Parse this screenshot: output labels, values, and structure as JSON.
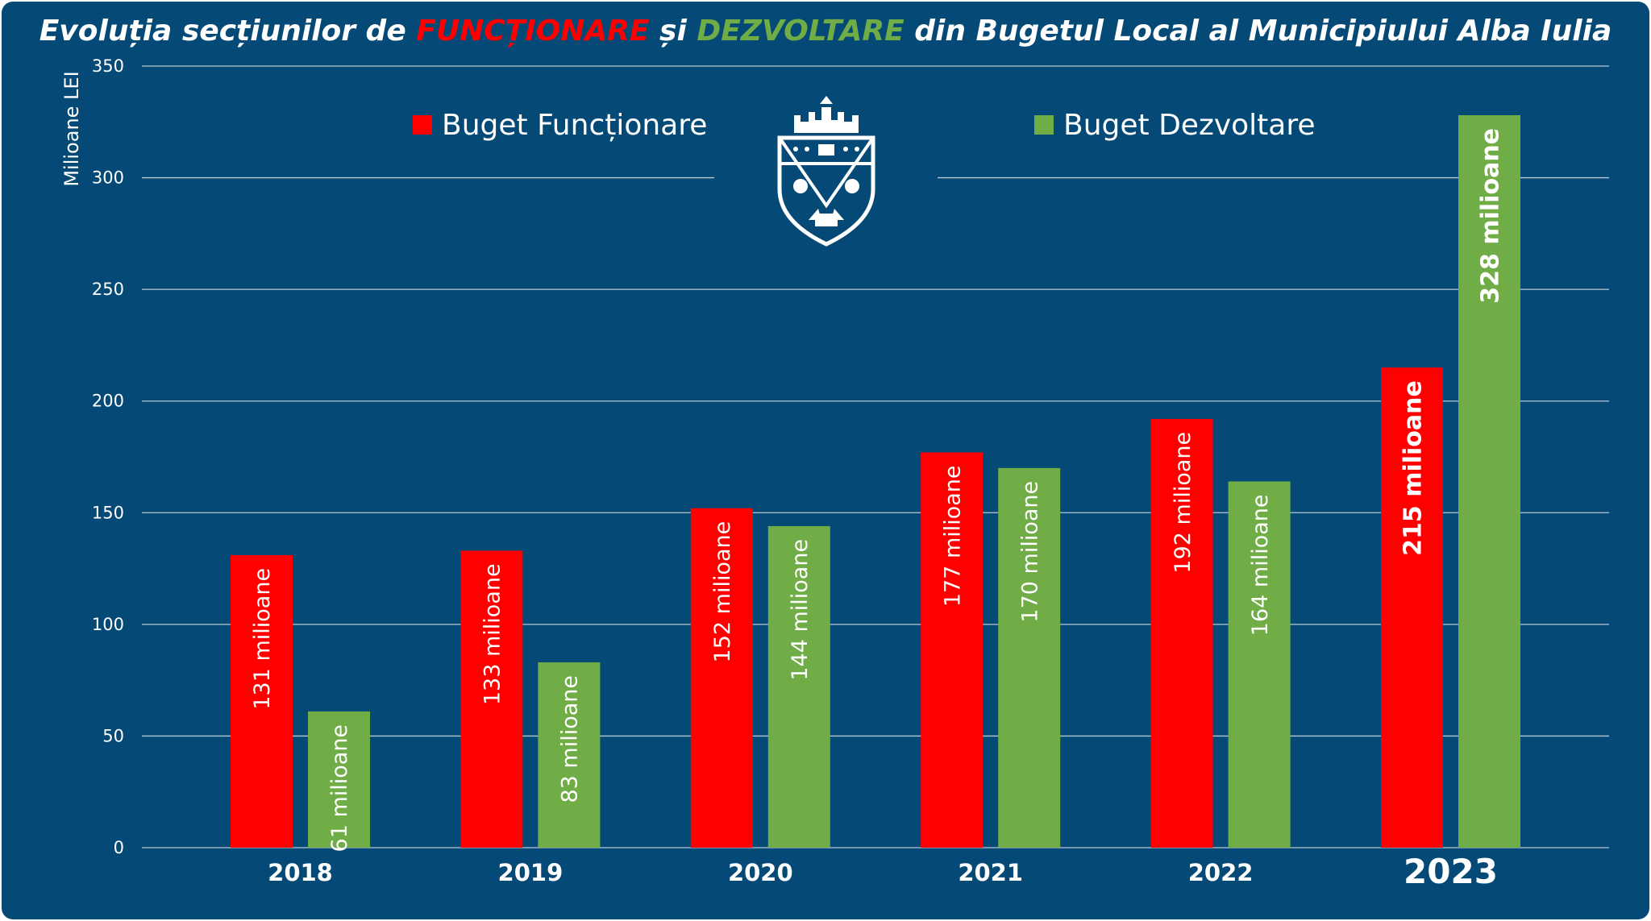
{
  "colors": {
    "background": "#054a76",
    "functionare": "#ff0000",
    "dezvoltare": "#70ad47",
    "text": "#ffffff",
    "grid": "#b9c8d6"
  },
  "title": {
    "part1": "Evoluția secțiunilor de ",
    "highlight1": "FUNCȚIONARE",
    "part2": " și ",
    "highlight2": "DEZVOLTARE",
    "part3": " din Bugetul Local al Municipiului Alba Iulia"
  },
  "emblem": {
    "icon": "city-coat-of-arms-icon"
  },
  "chart_data": {
    "type": "bar",
    "ylabel": "Milioane LEI",
    "ylim": [
      0,
      350
    ],
    "yticks": [
      0,
      50,
      100,
      150,
      200,
      250,
      300,
      350
    ],
    "grid": true,
    "legend_position": "top",
    "categories": [
      "2018",
      "2019",
      "2020",
      "2021",
      "2022",
      "2023"
    ],
    "series": [
      {
        "name": "Buget Funcționare",
        "values": [
          131,
          133,
          152,
          177,
          192,
          215
        ],
        "labels": [
          "131 milioane",
          "133 milioane",
          "152 milioane",
          "177 milioane",
          "192 milioane",
          "215 milioane"
        ]
      },
      {
        "name": "Buget Dezvoltare",
        "values": [
          61,
          83,
          144,
          170,
          164,
          328
        ],
        "labels": [
          "61 milioane",
          "83 milioane",
          "144 milioane",
          "170 milioane",
          "164 milioane",
          "328 milioane"
        ]
      }
    ]
  }
}
